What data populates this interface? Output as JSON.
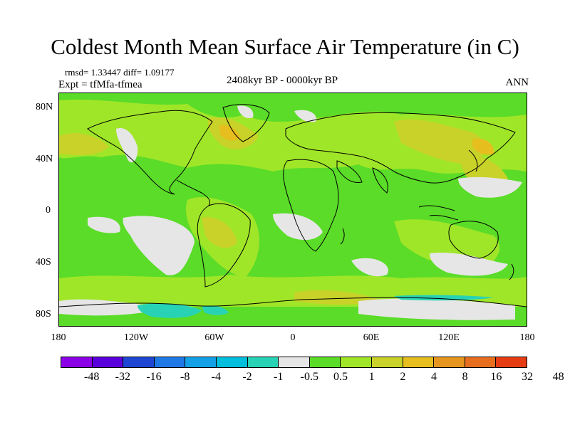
{
  "title": "Coldest Month Mean Surface Air Temperature (in C)",
  "stats": "rmsd= 1.33447  diff= 1.09177",
  "experiment": "Expt = tfMfa-tfmea",
  "period": "2408kyr BP - 0000kyr BP",
  "season": "ANN",
  "lat_labels": [
    "80N",
    "40N",
    "0",
    "40S",
    "80S"
  ],
  "lon_labels": [
    "180",
    "120W",
    "60W",
    "0",
    "60E",
    "120E",
    "180"
  ],
  "colorbar": {
    "colors": [
      "#8b00e6",
      "#5a00dc",
      "#1e46d2",
      "#1e78e6",
      "#14a0e6",
      "#00bedc",
      "#28d2b4",
      "#e6e6e6",
      "#5adc28",
      "#a0e628",
      "#c8d228",
      "#e6be1e",
      "#e6961e",
      "#e66e1e",
      "#e63c14"
    ],
    "labels": [
      "-48",
      "-32",
      "-16",
      "-8",
      "-4",
      "-2",
      "-1",
      "-0.5",
      "0.5",
      "1",
      "2",
      "4",
      "8",
      "16",
      "32",
      "48"
    ]
  }
}
